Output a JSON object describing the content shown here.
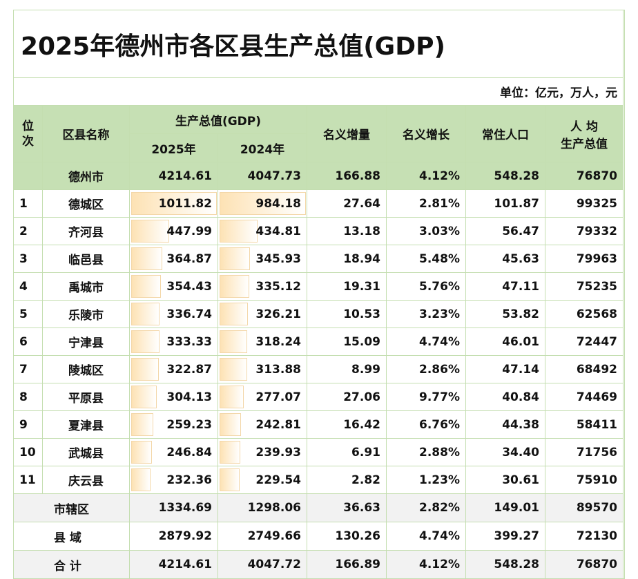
{
  "title": "2025年德州市各区县生产总值(GDP)",
  "unit": "单位：亿元，万人，元",
  "header": {
    "rank": "位次",
    "name": "区县名称",
    "gdp": "生产总值(GDP)",
    "y2025": "2025年",
    "y2024": "2024年",
    "increment": "名义增量",
    "growth": "名义增长",
    "population": "常住人口",
    "per_capita": [
      "人 均",
      "生产总值"
    ]
  },
  "summary": [
    "德州市",
    "4214.61",
    "4047.73",
    "166.88",
    "4.12%",
    "548.28",
    "76870"
  ],
  "rows": [
    [
      "1",
      "德城区",
      "1011.82",
      "984.18",
      "27.64",
      "2.81%",
      "101.87",
      "99325"
    ],
    [
      "2",
      "齐河县",
      "447.99",
      "434.81",
      "13.18",
      "3.03%",
      "56.47",
      "79332"
    ],
    [
      "3",
      "临邑县",
      "364.87",
      "345.93",
      "18.94",
      "5.48%",
      "45.63",
      "79963"
    ],
    [
      "4",
      "禹城市",
      "354.43",
      "335.12",
      "19.31",
      "5.76%",
      "47.11",
      "75235"
    ],
    [
      "5",
      "乐陵市",
      "336.74",
      "326.21",
      "10.53",
      "3.23%",
      "53.82",
      "62568"
    ],
    [
      "6",
      "宁津县",
      "333.33",
      "318.24",
      "15.09",
      "4.74%",
      "46.01",
      "72447"
    ],
    [
      "7",
      "陵城区",
      "322.87",
      "313.88",
      "8.99",
      "2.86%",
      "47.14",
      "68492"
    ],
    [
      "8",
      "平原县",
      "304.13",
      "277.07",
      "27.06",
      "9.77%",
      "40.84",
      "74469"
    ],
    [
      "9",
      "夏津县",
      "259.23",
      "242.81",
      "16.42",
      "6.76%",
      "44.38",
      "58411"
    ],
    [
      "10",
      "武城县",
      "246.84",
      "239.93",
      "6.91",
      "2.88%",
      "34.40",
      "71756"
    ],
    [
      "11",
      "庆云县",
      "232.36",
      "229.54",
      "2.82",
      "1.23%",
      "30.61",
      "75910"
    ]
  ],
  "totals": [
    [
      "市辖区",
      "1334.69",
      "1298.06",
      "36.63",
      "2.82%",
      "149.01",
      "89570"
    ],
    [
      "县 域",
      "2879.92",
      "2749.66",
      "130.26",
      "4.74%",
      "399.27",
      "72130"
    ],
    [
      "合 计",
      "4214.61",
      "4047.72",
      "166.89",
      "4.12%",
      "548.28",
      "76870"
    ]
  ]
}
